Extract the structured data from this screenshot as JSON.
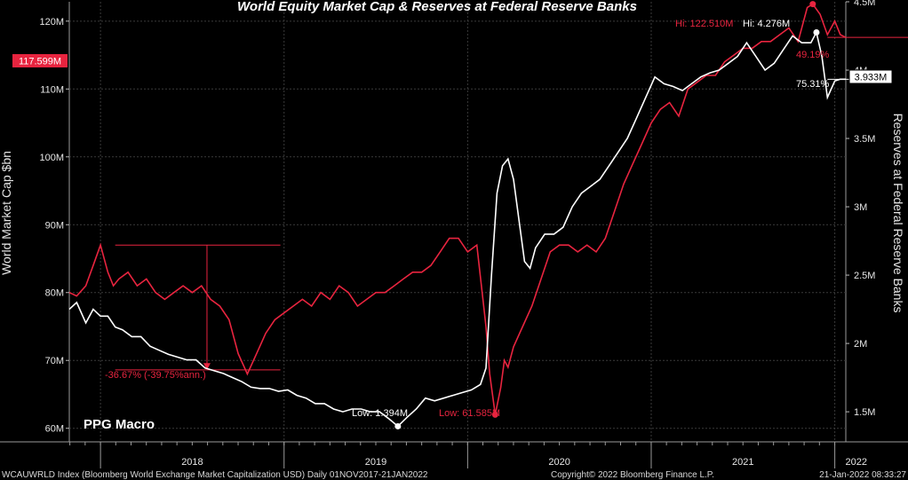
{
  "chart_data": {
    "type": "line",
    "title": "World Equity Market Cap & Reserves at Federal Reserve Banks",
    "y_left_label": "World Market Cap $bn",
    "y_right_label": "Reserves at Federal Reserve Banks",
    "y_left_ticks": [
      "60M",
      "70M",
      "80M",
      "90M",
      "100M",
      "110M",
      "120M"
    ],
    "y_left_tick_values": [
      60,
      70,
      80,
      90,
      100,
      110,
      120
    ],
    "y_right_ticks": [
      "1.5M",
      "2M",
      "2.5M",
      "3M",
      "3.5M",
      "4M",
      "4.5M"
    ],
    "y_right_tick_values": [
      1.5,
      2.0,
      2.5,
      3.0,
      3.5,
      4.0,
      4.5
    ],
    "y_left_range": [
      58,
      120.5
    ],
    "y_right_range": [
      1.28,
      4.5
    ],
    "x_labels": [
      "2018",
      "2019",
      "2020",
      "2021",
      "2022"
    ],
    "x_range": [
      2017.83,
      2022.06
    ],
    "series": [
      {
        "name": "WCAUWRLD Index (Bloomberg World Exchange Market Capitalization USD)",
        "color": "#e8243f",
        "axis": "left",
        "x": [
          2017.83,
          2017.87,
          2017.92,
          2017.96,
          2018.0,
          2018.04,
          2018.07,
          2018.1,
          2018.15,
          2018.2,
          2018.25,
          2018.3,
          2018.35,
          2018.4,
          2018.45,
          2018.5,
          2018.55,
          2018.6,
          2018.65,
          2018.7,
          2018.75,
          2018.8,
          2018.85,
          2018.9,
          2018.95,
          2019.0,
          2019.05,
          2019.1,
          2019.15,
          2019.2,
          2019.25,
          2019.3,
          2019.35,
          2019.4,
          2019.45,
          2019.5,
          2019.55,
          2019.6,
          2019.65,
          2019.7,
          2019.75,
          2019.8,
          2019.85,
          2019.9,
          2019.95,
          2020.0,
          2020.05,
          2020.1,
          2020.12,
          2020.15,
          2020.18,
          2020.2,
          2020.22,
          2020.25,
          2020.3,
          2020.35,
          2020.4,
          2020.45,
          2020.5,
          2020.55,
          2020.6,
          2020.65,
          2020.7,
          2020.75,
          2020.8,
          2020.85,
          2020.9,
          2020.95,
          2021.0,
          2021.05,
          2021.1,
          2021.15,
          2021.2,
          2021.25,
          2021.3,
          2021.35,
          2021.4,
          2021.45,
          2021.5,
          2021.55,
          2021.6,
          2021.65,
          2021.7,
          2021.75,
          2021.8,
          2021.85,
          2021.88,
          2021.92,
          2021.96,
          2022.0,
          2022.03,
          2022.06
        ],
        "y": [
          80,
          79.5,
          81,
          84,
          87,
          83,
          81,
          82,
          83,
          81,
          82,
          80,
          79,
          80,
          81,
          80,
          81,
          79,
          78,
          76,
          71,
          68,
          71,
          74,
          76,
          77,
          78,
          79,
          78,
          80,
          79,
          81,
          80,
          78,
          79,
          80,
          80,
          81,
          82,
          83,
          83,
          84,
          86,
          88,
          88,
          86,
          87,
          75,
          68,
          62,
          66,
          70,
          69,
          72,
          75,
          78,
          82,
          86,
          87,
          87,
          86,
          87,
          86,
          88,
          92,
          96,
          99,
          102,
          105,
          107,
          108,
          106,
          110,
          111,
          112,
          112,
          114,
          115,
          116,
          116,
          117,
          117,
          118,
          119,
          117,
          122,
          122.51,
          121,
          118,
          120,
          118,
          117.6
        ]
      },
      {
        "name": "Reserves at Federal Reserve Banks",
        "color": "#ffffff",
        "axis": "right",
        "x": [
          2017.83,
          2017.87,
          2017.92,
          2017.96,
          2018.0,
          2018.04,
          2018.08,
          2018.12,
          2018.17,
          2018.22,
          2018.27,
          2018.32,
          2018.37,
          2018.42,
          2018.47,
          2018.52,
          2018.57,
          2018.62,
          2018.67,
          2018.72,
          2018.77,
          2018.82,
          2018.87,
          2018.92,
          2018.97,
          2019.02,
          2019.07,
          2019.12,
          2019.17,
          2019.22,
          2019.27,
          2019.32,
          2019.37,
          2019.42,
          2019.47,
          2019.52,
          2019.57,
          2019.62,
          2019.67,
          2019.72,
          2019.77,
          2019.82,
          2019.87,
          2019.92,
          2019.97,
          2020.02,
          2020.07,
          2020.1,
          2020.13,
          2020.16,
          2020.19,
          2020.22,
          2020.25,
          2020.28,
          2020.31,
          2020.34,
          2020.37,
          2020.42,
          2020.47,
          2020.52,
          2020.57,
          2020.62,
          2020.67,
          2020.72,
          2020.77,
          2020.82,
          2020.87,
          2020.92,
          2020.97,
          2021.02,
          2021.07,
          2021.12,
          2021.17,
          2021.22,
          2021.27,
          2021.32,
          2021.37,
          2021.42,
          2021.47,
          2021.52,
          2021.57,
          2021.62,
          2021.67,
          2021.72,
          2021.77,
          2021.82,
          2021.87,
          2021.9,
          2021.93,
          2021.96,
          2022.0,
          2022.03,
          2022.06
        ],
        "y": [
          2.25,
          2.3,
          2.15,
          2.25,
          2.2,
          2.2,
          2.12,
          2.1,
          2.05,
          2.05,
          1.98,
          1.95,
          1.92,
          1.9,
          1.88,
          1.88,
          1.82,
          1.8,
          1.78,
          1.75,
          1.72,
          1.68,
          1.67,
          1.67,
          1.65,
          1.66,
          1.62,
          1.6,
          1.56,
          1.56,
          1.52,
          1.5,
          1.52,
          1.52,
          1.5,
          1.5,
          1.45,
          1.394,
          1.46,
          1.52,
          1.6,
          1.58,
          1.6,
          1.62,
          1.64,
          1.66,
          1.7,
          1.82,
          2.5,
          3.1,
          3.3,
          3.35,
          3.2,
          2.9,
          2.6,
          2.55,
          2.7,
          2.8,
          2.8,
          2.85,
          3.0,
          3.1,
          3.15,
          3.2,
          3.3,
          3.4,
          3.5,
          3.65,
          3.8,
          3.95,
          3.9,
          3.88,
          3.85,
          3.9,
          3.95,
          3.98,
          4.0,
          4.05,
          4.1,
          4.2,
          4.1,
          4.0,
          4.05,
          4.15,
          4.25,
          4.2,
          4.2,
          4.276,
          4.1,
          3.8,
          3.92,
          3.933,
          3.933
        ]
      }
    ],
    "annotations": {
      "left_last": "117.599M",
      "right_last": "3.933M",
      "hi_red": "Hi: 122.510M",
      "hi_white": "Hi: 4.276M",
      "low_white": "Low: 1.394M",
      "low_red": "Low: 61.585M",
      "pct_red": "49.19%",
      "pct_white": "75.31%",
      "drawdown": "-36.67% (-39.75%ann.)"
    },
    "grid": true
  },
  "watermark": "PPG Macro",
  "footer": {
    "left": "WCAUWRLD Index (Bloomberg World Exchange Market Capitalization USD)  Daily 01NOV2017-21JAN2022",
    "center": "Copyright© 2022 Bloomberg Finance L.P.",
    "right": "21-Jan-2022 08:33:27"
  }
}
